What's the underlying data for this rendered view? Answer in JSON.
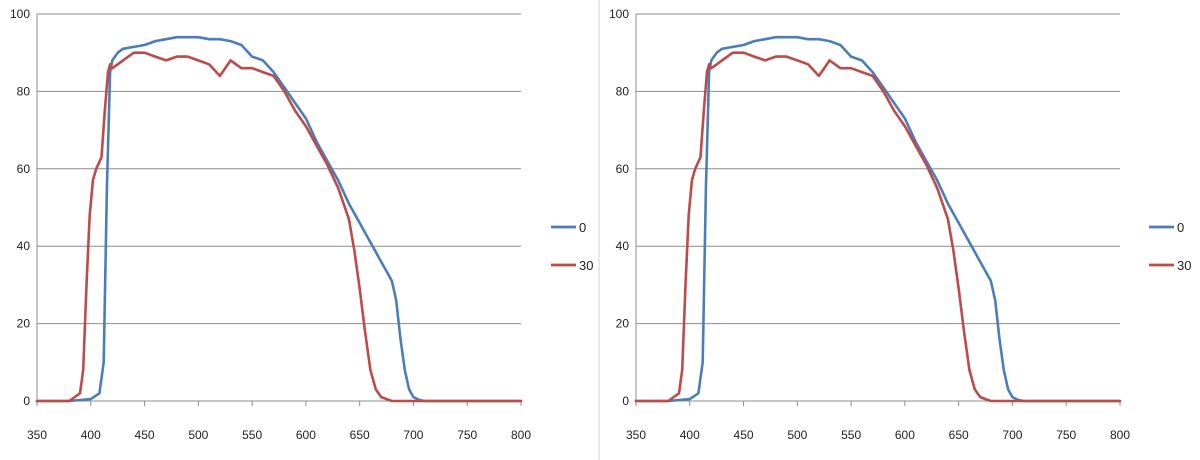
{
  "chart_data": [
    {
      "type": "line",
      "xlim": [
        350,
        800
      ],
      "ylim": [
        0,
        100
      ],
      "x_ticks": [
        "350",
        "400",
        "450",
        "500",
        "550",
        "600",
        "650",
        "700",
        "750",
        "800"
      ],
      "y_ticks": [
        "0",
        "20",
        "40",
        "60",
        "80",
        "100"
      ],
      "grid": "horizontal",
      "legend_position": "right",
      "series": [
        {
          "name": "0",
          "color": "#4a7ebb",
          "x": [
            350,
            380,
            400,
            408,
            412,
            415,
            418,
            420,
            425,
            430,
            440,
            450,
            460,
            470,
            480,
            490,
            500,
            510,
            520,
            530,
            540,
            550,
            560,
            570,
            580,
            590,
            600,
            610,
            620,
            630,
            640,
            650,
            660,
            670,
            680,
            684,
            688,
            692,
            696,
            700,
            705,
            710,
            720,
            800
          ],
          "y": [
            0,
            0,
            0.5,
            2,
            10,
            55,
            85,
            88,
            90,
            91,
            91.5,
            92,
            93,
            93.5,
            94,
            94,
            94,
            93.5,
            93.5,
            93,
            92,
            89,
            88,
            85,
            81,
            77,
            73,
            67,
            62,
            57,
            51,
            46,
            41,
            36,
            31,
            26,
            16,
            8,
            3,
            1,
            0.3,
            0,
            0,
            0
          ]
        },
        {
          "name": "30",
          "color": "#be4b48",
          "x": [
            350,
            380,
            390,
            393,
            396,
            399,
            402,
            405,
            410,
            413,
            416,
            418,
            420,
            425,
            430,
            440,
            450,
            460,
            470,
            480,
            490,
            500,
            510,
            520,
            525,
            530,
            540,
            550,
            560,
            570,
            580,
            590,
            600,
            610,
            620,
            630,
            640,
            645,
            650,
            655,
            660,
            665,
            670,
            675,
            680,
            690,
            800
          ],
          "y": [
            0,
            0,
            2,
            8,
            30,
            48,
            57,
            60,
            63,
            75,
            85,
            87,
            86,
            87,
            88,
            90,
            90,
            89,
            88,
            89,
            89,
            88,
            87,
            84,
            86,
            88,
            86,
            86,
            85,
            84,
            80,
            75,
            71,
            66,
            61,
            55,
            47,
            39,
            29,
            18,
            8,
            3,
            1,
            0.5,
            0,
            0,
            0
          ]
        }
      ]
    },
    {
      "type": "line",
      "xlim": [
        350,
        800
      ],
      "ylim": [
        0,
        100
      ],
      "x_ticks": [
        "350",
        "400",
        "450",
        "500",
        "550",
        "600",
        "650",
        "700",
        "750",
        "800"
      ],
      "y_ticks": [
        "0",
        "20",
        "40",
        "60",
        "80",
        "100"
      ],
      "grid": "horizontal",
      "legend_position": "right",
      "series": [
        {
          "name": "0",
          "color": "#4a7ebb",
          "x": [
            350,
            380,
            400,
            408,
            412,
            415,
            418,
            420,
            425,
            430,
            440,
            450,
            460,
            470,
            480,
            490,
            500,
            510,
            520,
            530,
            540,
            550,
            560,
            570,
            580,
            590,
            600,
            610,
            620,
            630,
            640,
            650,
            660,
            670,
            680,
            684,
            688,
            692,
            696,
            700,
            705,
            710,
            720,
            800
          ],
          "y": [
            0,
            0,
            0.5,
            2,
            10,
            55,
            85,
            88,
            90,
            91,
            91.5,
            92,
            93,
            93.5,
            94,
            94,
            94,
            93.5,
            93.5,
            93,
            92,
            89,
            88,
            85,
            81,
            77,
            73,
            67,
            62,
            57,
            51,
            46,
            41,
            36,
            31,
            26,
            16,
            8,
            3,
            1,
            0.3,
            0,
            0,
            0
          ]
        },
        {
          "name": "30",
          "color": "#be4b48",
          "x": [
            350,
            380,
            390,
            393,
            396,
            399,
            402,
            405,
            410,
            413,
            416,
            418,
            420,
            425,
            430,
            440,
            450,
            460,
            470,
            480,
            490,
            500,
            510,
            520,
            525,
            530,
            540,
            550,
            560,
            570,
            580,
            590,
            600,
            610,
            620,
            630,
            640,
            645,
            650,
            655,
            660,
            665,
            670,
            675,
            680,
            690,
            800
          ],
          "y": [
            0,
            0,
            2,
            8,
            30,
            48,
            57,
            60,
            63,
            75,
            85,
            87,
            86,
            87,
            88,
            90,
            90,
            89,
            88,
            89,
            89,
            88,
            87,
            84,
            86,
            88,
            86,
            86,
            85,
            84,
            80,
            75,
            71,
            66,
            61,
            55,
            47,
            39,
            29,
            18,
            8,
            3,
            1,
            0.5,
            0,
            0,
            0
          ]
        }
      ]
    }
  ]
}
